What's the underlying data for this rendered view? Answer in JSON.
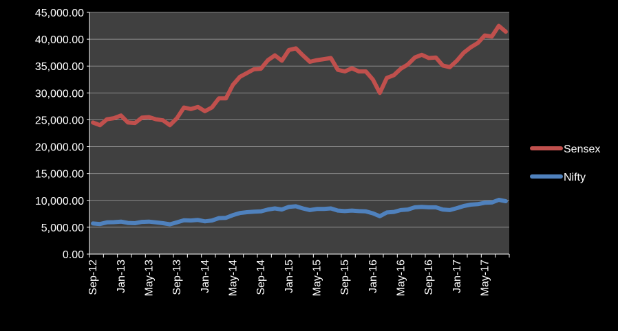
{
  "chart_data": {
    "type": "line",
    "title": "",
    "xlabel": "",
    "ylabel": "",
    "ylim": [
      0,
      45000
    ],
    "yticks": [
      "0.00",
      "5,000.00",
      "10,000.00",
      "15,000.00",
      "20,000.00",
      "25,000.00",
      "30,000.00",
      "35,000.00",
      "40,000.00",
      "45,000.00"
    ],
    "ytick_values": [
      0,
      5000,
      10000,
      15000,
      20000,
      25000,
      30000,
      35000,
      40000,
      45000
    ],
    "x": [
      "Sep-12",
      "Oct-12",
      "Nov-12",
      "Dec-12",
      "Jan-13",
      "Feb-13",
      "Mar-13",
      "Apr-13",
      "May-13",
      "Jun-13",
      "Jul-13",
      "Aug-13",
      "Sep-13",
      "Oct-13",
      "Nov-13",
      "Dec-13",
      "Jan-14",
      "Feb-14",
      "Mar-14",
      "Apr-14",
      "May-14",
      "Jun-14",
      "Jul-14",
      "Aug-14",
      "Sep-14",
      "Oct-14",
      "Nov-14",
      "Dec-14",
      "Jan-15",
      "Feb-15",
      "Mar-15",
      "Apr-15",
      "May-15",
      "Jun-15",
      "Jul-15",
      "Aug-15",
      "Sep-15",
      "Oct-15",
      "Nov-15",
      "Dec-15",
      "Jan-16",
      "Feb-16",
      "Mar-16",
      "Apr-16",
      "May-16",
      "Jun-16",
      "Jul-16",
      "Aug-16",
      "Sep-16",
      "Oct-16",
      "Nov-16",
      "Dec-16",
      "Jan-17",
      "Feb-17",
      "Mar-17",
      "Apr-17",
      "May-17",
      "Jun-17",
      "Jul-17",
      "Aug-17"
    ],
    "x_tick_labels": [
      "Sep-12",
      "Jan-13",
      "May-13",
      "Sep-13",
      "Jan-14",
      "May-14",
      "Sep-14",
      "Jan-15",
      "May-15",
      "Sep-15",
      "Jan-16",
      "May-16",
      "Sep-16",
      "Jan-17",
      "May-17"
    ],
    "grid": true,
    "legend_position": "right",
    "plot_background": "#404040",
    "series": [
      {
        "name": "Sensex",
        "color": "#c0504d",
        "values": [
          24500,
          24000,
          25100,
          25300,
          25800,
          24500,
          24400,
          25400,
          25500,
          25100,
          24900,
          24000,
          25300,
          27300,
          27000,
          27400,
          26600,
          27300,
          29000,
          29000,
          31500,
          33000,
          33700,
          34400,
          34500,
          36100,
          37000,
          36000,
          38000,
          38300,
          37000,
          35800,
          36100,
          36300,
          36500,
          34300,
          34000,
          34600,
          34000,
          34000,
          32500,
          30000,
          32800,
          33300,
          34500,
          35300,
          36600,
          37100,
          36500,
          36600,
          35100,
          34800,
          36000,
          37500,
          38500,
          39300,
          40700,
          40500,
          42500,
          41400
        ]
      },
      {
        "name": "Nifty",
        "color": "#4f81bd",
        "values": [
          5700,
          5600,
          5900,
          5950,
          6050,
          5800,
          5750,
          6000,
          6050,
          5900,
          5750,
          5550,
          5900,
          6300,
          6250,
          6350,
          6100,
          6250,
          6700,
          6750,
          7250,
          7650,
          7800,
          7900,
          7950,
          8300,
          8500,
          8300,
          8800,
          8900,
          8500,
          8200,
          8400,
          8400,
          8500,
          8100,
          8000,
          8100,
          8000,
          7950,
          7600,
          7050,
          7750,
          7850,
          8200,
          8300,
          8700,
          8800,
          8700,
          8700,
          8300,
          8200,
          8550,
          8950,
          9200,
          9300,
          9550,
          9600,
          10100,
          9850
        ]
      }
    ]
  }
}
